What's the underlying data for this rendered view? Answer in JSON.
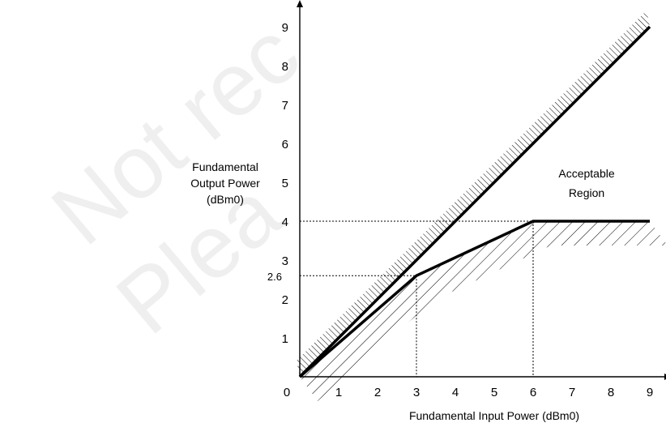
{
  "chart_data": {
    "type": "line",
    "xlabel": "Fundamental Input Power (dBm0)",
    "ylabel_lines": [
      "Fundamental",
      "Output Power",
      "(dBm0)"
    ],
    "xlim": [
      0,
      9
    ],
    "ylim": [
      0,
      9
    ],
    "x_ticks": [
      "0",
      "1",
      "2",
      "3",
      "4",
      "5",
      "6",
      "7",
      "8",
      "9"
    ],
    "y_ticks": [
      "1",
      "2",
      "3",
      "4",
      "5",
      "6",
      "7",
      "8",
      "9"
    ],
    "extra_y_tick": {
      "value": 2.6,
      "label": "2.6"
    },
    "region_label_lines": [
      "Acceptable",
      "Region"
    ],
    "series": [
      {
        "x": [
          0,
          9
        ],
        "y": [
          0,
          9
        ]
      },
      {
        "x": [
          0,
          3,
          6,
          9
        ],
        "y": [
          0,
          2.6,
          4,
          4
        ]
      }
    ],
    "reference_lines": [
      {
        "x": [
          0,
          6,
          6
        ],
        "y": [
          4,
          4,
          0
        ]
      },
      {
        "x": [
          0,
          3,
          3
        ],
        "y": [
          2.6,
          2.6,
          0
        ]
      }
    ],
    "hatch_upper_edge": {
      "x": [
        0,
        9
      ],
      "y": [
        0,
        9
      ]
    },
    "hatch_lower_edge": {
      "x": [
        0,
        3,
        6,
        9
      ],
      "y": [
        0,
        2.6,
        4,
        4
      ]
    },
    "grid": false,
    "colors": {
      "line": "#000000",
      "hatch": "#000000",
      "watermark": "#c8c8c8"
    }
  },
  "watermark": {
    "line1": "Not rec",
    "line2": "Plea"
  }
}
